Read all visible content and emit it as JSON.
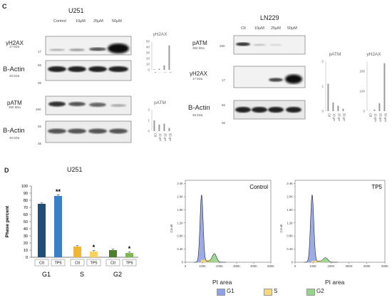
{
  "panel_c": {
    "letter": "C",
    "u251": {
      "title": "U251",
      "conditions": [
        "Control",
        "10μM",
        "25μM",
        "50μM"
      ],
      "blots": [
        {
          "name": "γH2AX",
          "kda": "17 kDa",
          "marker": "17"
        },
        {
          "name": "B-Actin",
          "kda": "45 kDa",
          "marker": "55",
          "marker2": "36"
        },
        {
          "name": "pATM",
          "kda": "350 kDa",
          "marker": "250"
        },
        {
          "name": "B-Actin",
          "kda": "45 kDa",
          "marker": "55",
          "marker2": "36"
        }
      ]
    },
    "ln229": {
      "title": "LN229",
      "conditions": [
        "Ctl",
        "10μM",
        "25μM",
        "50μM"
      ],
      "blots": [
        {
          "name": "pATM",
          "kda": "350 kDa",
          "marker": "250"
        },
        {
          "name": "γH2AX",
          "kda": "17 kDa",
          "marker": "17"
        },
        {
          "name": "B-Actin",
          "kda": "45 kDa",
          "marker": "55",
          "marker2": "36"
        }
      ]
    }
  },
  "panel_d": {
    "letter": "D",
    "title": "U251",
    "flow": {
      "x_axis_label": "PI area",
      "x_ticks": [
        "0",
        "100K",
        "200K",
        "300K",
        "400K",
        "500K"
      ],
      "y_axis_label": "Count",
      "y_ticks": [
        "0",
        "0.4K",
        "0.8K",
        "1.2K",
        "1.6K",
        "2.0K",
        "2.4K"
      ],
      "panels": [
        {
          "label": "Control"
        },
        {
          "label": "TP5"
        }
      ],
      "legend": [
        {
          "label": "G1",
          "color": "#8fa2e3"
        },
        {
          "label": "S",
          "color": "#f7d87a"
        },
        {
          "label": "G2",
          "color": "#93d58a"
        }
      ]
    }
  },
  "chart_data": [
    {
      "type": "bar",
      "title": "γH2AX",
      "categories": [
        "Ctl",
        "10",
        "25",
        "50"
      ],
      "category_unit": "μm",
      "values": [
        1,
        2,
        8,
        43
      ],
      "ylim": [
        0,
        50
      ],
      "yticks": [
        0,
        10,
        20,
        30,
        40,
        50
      ]
    },
    {
      "type": "bar",
      "title": "pATM",
      "categories": [
        "Ctl",
        "10",
        "25",
        "50"
      ],
      "category_unit": "μm",
      "values": [
        1,
        0.6,
        0.7,
        0.3
      ],
      "ylim": [
        0,
        2
      ],
      "yticks": [
        0,
        1,
        2
      ]
    },
    {
      "type": "bar",
      "title": "pATM",
      "categories": [
        "Ctl",
        "10",
        "25",
        "50"
      ],
      "category_unit": "μm",
      "values": [
        1.1,
        0.35,
        0.22,
        0.1
      ],
      "ylim": [
        0,
        2
      ],
      "yticks": [
        0,
        1,
        2
      ]
    },
    {
      "type": "bar",
      "title": "γH2AX",
      "categories": [
        "Ctl",
        "10",
        "25",
        "50"
      ],
      "category_unit": "μm",
      "values": [
        1,
        8,
        40,
        240
      ],
      "ylim": [
        0,
        250
      ],
      "yticks": [
        0,
        100,
        200
      ]
    },
    {
      "type": "bar",
      "title": "",
      "xlabel": "",
      "ylabel": "Phase percent",
      "ylim": [
        0,
        100
      ],
      "yticks": [
        0,
        10,
        20,
        30,
        40,
        50,
        60,
        70,
        80,
        90,
        100
      ],
      "groups": [
        "G1",
        "S",
        "G2"
      ],
      "subcategories": [
        "Ctl",
        "TP5"
      ],
      "values": [
        [
          75,
          86
        ],
        [
          15,
          8
        ],
        [
          10,
          6
        ]
      ],
      "significance": [
        [
          "",
          "**"
        ],
        [
          "",
          "*"
        ],
        [
          "",
          "*"
        ]
      ],
      "colors": [
        [
          "#1f4e79",
          "#3a80c9"
        ],
        [
          "#f3b52b",
          "#f8d25e"
        ],
        [
          "#4b7f2b",
          "#7fb552"
        ]
      ]
    }
  ]
}
